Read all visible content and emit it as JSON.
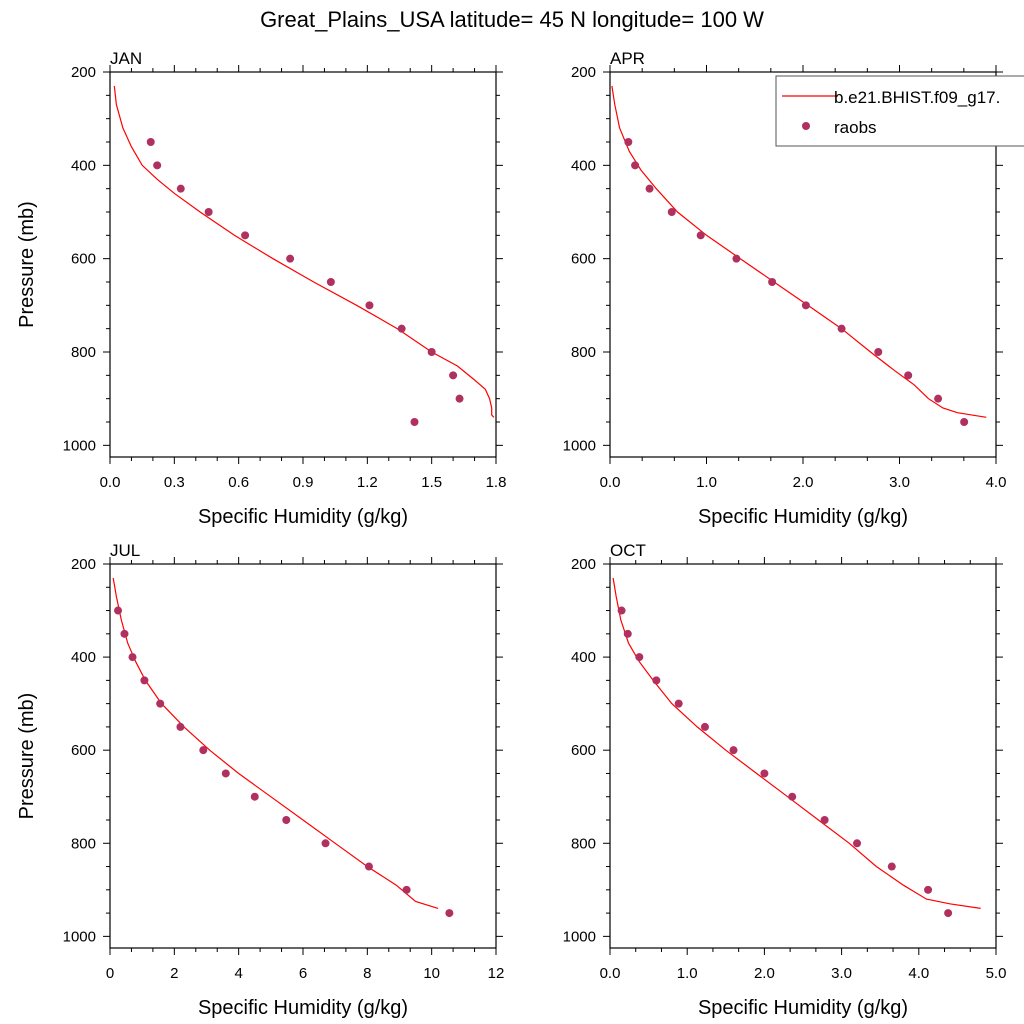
{
  "figure_title": "Great_Plains_USA  latitude= 45 N longitude= 100 W",
  "colors": {
    "model": "#ff0000",
    "obs": "#b03060",
    "axis": "#000000"
  },
  "legend": {
    "placement": "top-right of APR panel",
    "model_label": "b.e21.BHIST.f09_g17.",
    "obs_label": "raobs"
  },
  "chart_data": [
    {
      "type": "line",
      "title": "JAN",
      "xlabel": "Specific Humidity (g/kg)",
      "ylabel": "Pressure (mb)",
      "xlim": [
        0,
        1.8
      ],
      "ylim": [
        1025,
        200
      ],
      "xticks": [
        0,
        0.3,
        0.6,
        0.9,
        1.2,
        1.5,
        1.8
      ],
      "xtick_labels": [
        "0.0",
        "0.3",
        "0.6",
        "0.9",
        "1.2",
        "1.5",
        "1.8"
      ],
      "yticks": [
        200,
        400,
        600,
        800,
        1000
      ],
      "ytick_labels": [
        "200",
        "400",
        "600",
        "800",
        "1000"
      ],
      "series": [
        {
          "name": "b.e21.BHIST.f09_g17.",
          "kind": "line",
          "x": [
            0.02,
            0.03,
            0.06,
            0.1,
            0.15,
            0.22,
            0.3,
            0.42,
            0.58,
            0.76,
            0.95,
            1.15,
            1.34,
            1.5,
            1.62,
            1.7,
            1.75,
            1.77,
            1.78,
            1.78,
            1.79
          ],
          "y": [
            230,
            270,
            320,
            360,
            400,
            430,
            460,
            500,
            550,
            600,
            650,
            700,
            750,
            800,
            830,
            860,
            880,
            900,
            920,
            935,
            940
          ]
        },
        {
          "name": "raobs",
          "kind": "scatter",
          "x": [
            0.19,
            0.22,
            0.33,
            0.46,
            0.63,
            0.84,
            1.03,
            1.21,
            1.36,
            1.5,
            1.6,
            1.63,
            1.42
          ],
          "y": [
            350,
            400,
            450,
            500,
            550,
            600,
            650,
            700,
            750,
            800,
            850,
            900,
            950
          ]
        }
      ]
    },
    {
      "type": "line",
      "title": "APR",
      "xlabel": "Specific Humidity (g/kg)",
      "ylabel": "",
      "xlim": [
        0,
        4.0
      ],
      "ylim": [
        1025,
        200
      ],
      "xticks": [
        0,
        1,
        2,
        3,
        4
      ],
      "xtick_labels": [
        "0.0",
        "1.0",
        "2.0",
        "3.0",
        "4.0"
      ],
      "yticks": [
        200,
        400,
        600,
        800,
        1000
      ],
      "ytick_labels": [
        "200",
        "400",
        "600",
        "800",
        "1000"
      ],
      "series": [
        {
          "name": "b.e21.BHIST.f09_g17.",
          "kind": "line",
          "x": [
            0.02,
            0.05,
            0.1,
            0.2,
            0.32,
            0.48,
            0.7,
            1.0,
            1.35,
            1.7,
            2.05,
            2.4,
            2.7,
            2.95,
            3.15,
            3.3,
            3.45,
            3.6,
            3.9
          ],
          "y": [
            230,
            270,
            320,
            370,
            410,
            450,
            500,
            550,
            600,
            650,
            700,
            750,
            800,
            840,
            870,
            900,
            920,
            930,
            940
          ]
        },
        {
          "name": "raobs",
          "kind": "scatter",
          "x": [
            0.19,
            0.26,
            0.41,
            0.64,
            0.94,
            1.31,
            1.68,
            2.03,
            2.4,
            2.78,
            3.09,
            3.4,
            3.67
          ],
          "y": [
            350,
            400,
            450,
            500,
            550,
            600,
            650,
            700,
            750,
            800,
            850,
            900,
            950
          ]
        }
      ]
    },
    {
      "type": "line",
      "title": "JUL",
      "xlabel": "Specific Humidity (g/kg)",
      "ylabel": "Pressure (mb)",
      "xlim": [
        0,
        12
      ],
      "ylim": [
        1025,
        200
      ],
      "xticks": [
        0,
        2,
        4,
        6,
        8,
        10,
        12
      ],
      "xtick_labels": [
        "0",
        "2",
        "4",
        "6",
        "8",
        "10",
        "12"
      ],
      "yticks": [
        200,
        400,
        600,
        800,
        1000
      ],
      "ytick_labels": [
        "200",
        "400",
        "600",
        "800",
        "1000"
      ],
      "series": [
        {
          "name": "b.e21.BHIST.f09_g17.",
          "kind": "line",
          "x": [
            0.1,
            0.2,
            0.35,
            0.55,
            0.8,
            1.1,
            1.6,
            2.3,
            3.1,
            4.0,
            5.0,
            6.0,
            7.0,
            8.0,
            8.9,
            9.5,
            10.2
          ],
          "y": [
            230,
            270,
            320,
            370,
            410,
            450,
            500,
            550,
            600,
            650,
            700,
            750,
            800,
            850,
            890,
            925,
            940
          ]
        },
        {
          "name": "raobs",
          "kind": "scatter",
          "x": [
            0.25,
            0.45,
            0.7,
            1.07,
            1.56,
            2.19,
            2.9,
            3.6,
            4.5,
            5.48,
            6.7,
            8.05,
            9.22,
            10.55
          ],
          "y": [
            300,
            350,
            400,
            450,
            500,
            550,
            600,
            650,
            700,
            750,
            800,
            850,
            900,
            950
          ]
        }
      ]
    },
    {
      "type": "line",
      "title": "OCT",
      "xlabel": "Specific Humidity (g/kg)",
      "ylabel": "",
      "xlim": [
        0,
        5.0
      ],
      "ylim": [
        1025,
        200
      ],
      "xticks": [
        0,
        1,
        2,
        3,
        4,
        5
      ],
      "xtick_labels": [
        "0.0",
        "1.0",
        "2.0",
        "3.0",
        "4.0",
        "5.0"
      ],
      "yticks": [
        200,
        400,
        600,
        800,
        1000
      ],
      "ytick_labels": [
        "200",
        "400",
        "600",
        "800",
        "1000"
      ],
      "series": [
        {
          "name": "b.e21.BHIST.f09_g17.",
          "kind": "line",
          "x": [
            0.04,
            0.08,
            0.14,
            0.24,
            0.38,
            0.56,
            0.8,
            1.13,
            1.5,
            1.9,
            2.3,
            2.7,
            3.1,
            3.45,
            3.8,
            4.1,
            4.4,
            4.8
          ],
          "y": [
            230,
            270,
            320,
            370,
            410,
            450,
            500,
            550,
            600,
            650,
            700,
            750,
            800,
            850,
            890,
            920,
            930,
            940
          ]
        },
        {
          "name": "raobs",
          "kind": "scatter",
          "x": [
            0.15,
            0.23,
            0.38,
            0.6,
            0.89,
            1.23,
            1.6,
            2.0,
            2.36,
            2.78,
            3.2,
            3.65,
            4.12,
            4.38
          ],
          "y": [
            300,
            350,
            400,
            450,
            500,
            550,
            600,
            650,
            700,
            750,
            800,
            850,
            900,
            950
          ]
        }
      ]
    }
  ]
}
